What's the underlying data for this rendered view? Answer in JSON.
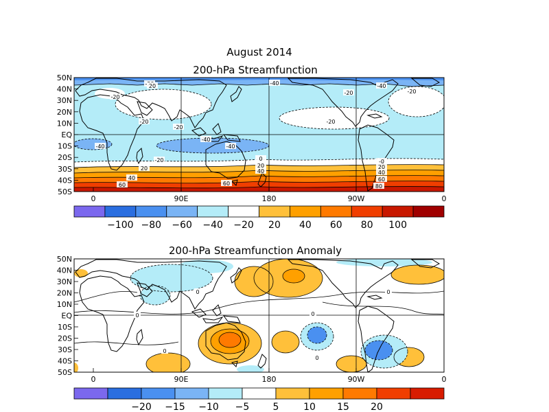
{
  "title": "August 2014",
  "top_panel": {
    "title": "200-hPa Streamfunction",
    "lat_labels": [
      "50N",
      "40N",
      "30N",
      "20N",
      "10N",
      "EQ",
      "10S",
      "20S",
      "30S",
      "40S",
      "50S"
    ],
    "lon_labels": [
      "0",
      "90E",
      "180",
      "90W",
      "0"
    ],
    "contour_labels": [
      {
        "text": "-20"
      },
      {
        "text": "-40"
      },
      {
        "text": "-20"
      },
      {
        "text": "-40"
      },
      {
        "text": "-20"
      },
      {
        "text": "-20"
      },
      {
        "text": "-20"
      },
      {
        "text": "-40"
      },
      {
        "text": "-40"
      },
      {
        "text": "-40"
      },
      {
        "text": "-20"
      },
      {
        "text": "20"
      },
      {
        "text": "40"
      },
      {
        "text": "60"
      },
      {
        "text": "60"
      },
      {
        "text": "20"
      },
      {
        "text": "40"
      },
      {
        "text": "-20"
      },
      {
        "text": "-0"
      },
      {
        "text": "20"
      },
      {
        "text": "40"
      },
      {
        "text": "60"
      },
      {
        "text": "80"
      },
      {
        "text": "-20"
      },
      {
        "text": "20"
      },
      {
        "text": "0"
      }
    ],
    "colorbar": {
      "colors": [
        "#7b68ee",
        "#2a6ee0",
        "#4a90f0",
        "#7ab4f5",
        "#b4ecf8",
        "#ffffff",
        "#ffc03a",
        "#ffa000",
        "#ff7a00",
        "#f03e00",
        "#c81800",
        "#a00000"
      ],
      "labels": [
        "-100",
        "-80",
        "-60",
        "-40",
        "-20",
        "20",
        "40",
        "60",
        "80",
        "100"
      ]
    }
  },
  "bottom_panel": {
    "title": "200-hPa Streamfunction Anomaly",
    "lat_labels": [
      "50N",
      "40N",
      "30N",
      "20N",
      "10N",
      "EQ",
      "10S",
      "20S",
      "30S",
      "40S",
      "50S"
    ],
    "lon_labels": [
      "0",
      "90E",
      "180",
      "90W",
      "0"
    ],
    "contour_labels": [
      {
        "text": "0"
      },
      {
        "text": "0"
      },
      {
        "text": "0"
      },
      {
        "text": "0"
      },
      {
        "text": "0"
      },
      {
        "text": "0"
      }
    ],
    "colorbar": {
      "colors": [
        "#7b68ee",
        "#2a6ee0",
        "#4a90f0",
        "#7ab4f5",
        "#b4ecf8",
        "#ffffff",
        "#ffc03a",
        "#ffa000",
        "#ff7a00",
        "#f03e00",
        "#d81c00"
      ],
      "labels": [
        "-20",
        "-15",
        "-10",
        "-5",
        "5",
        "10",
        "15",
        "20"
      ]
    }
  }
}
